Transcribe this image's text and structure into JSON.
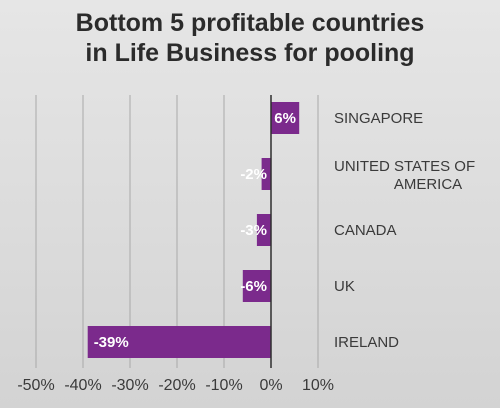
{
  "chart_data": {
    "type": "bar",
    "orientation": "horizontal",
    "title": [
      "Bottom 5 profitable countries",
      "in Life Business for pooling"
    ],
    "categories": [
      "SINGAPORE",
      "UNITED STATES OF AMERICA",
      "CANADA",
      "UK",
      "IRELAND"
    ],
    "category_label_lines": [
      [
        "SINGAPORE"
      ],
      [
        "UNITED STATES OF",
        "AMERICA"
      ],
      [
        "CANADA"
      ],
      [
        "UK"
      ],
      [
        "IRELAND"
      ]
    ],
    "values": [
      6,
      -2,
      -3,
      -6,
      -39
    ],
    "data_labels": [
      "6%",
      "-2%",
      "-3%",
      "-6%",
      "-39%"
    ],
    "xlim": [
      -50,
      10
    ],
    "x_ticks": [
      -50,
      -40,
      -30,
      -20,
      -10,
      0,
      10
    ],
    "x_tick_labels": [
      "-50%",
      "-40%",
      "-30%",
      "-20%",
      "-10%",
      "0%",
      "10%"
    ],
    "bar_color": "#7b2a8c",
    "grid": true,
    "legend": "none"
  }
}
